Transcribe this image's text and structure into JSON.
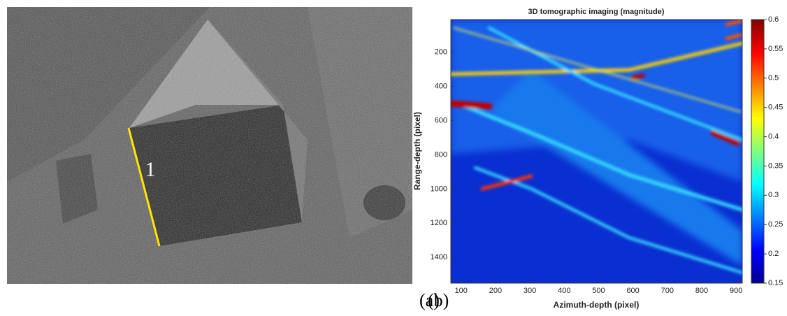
{
  "panel_a": {
    "line_label": "1",
    "caption": "(a)"
  },
  "chart_data": {
    "type": "heatmap",
    "title": "3D tomographic imaging (magnitude)",
    "x_label": "Azimuth-depth (pixel)",
    "y_label": "Range-depth (pixel)",
    "xlim": [
      70,
      918
    ],
    "xticks": [
      100,
      200,
      300,
      400,
      500,
      600,
      700,
      800,
      900
    ],
    "ylim": [
      10,
      1550
    ],
    "yticks": [
      200,
      400,
      600,
      800,
      1000,
      1200,
      1400
    ],
    "colorbar": {
      "lim": [
        0.15,
        0.6
      ],
      "ticks": [
        0.15,
        0.2,
        0.25,
        0.3,
        0.35,
        0.4,
        0.45,
        0.5,
        0.55,
        0.6
      ],
      "colormap": "jet"
    },
    "caption": "(b)"
  }
}
